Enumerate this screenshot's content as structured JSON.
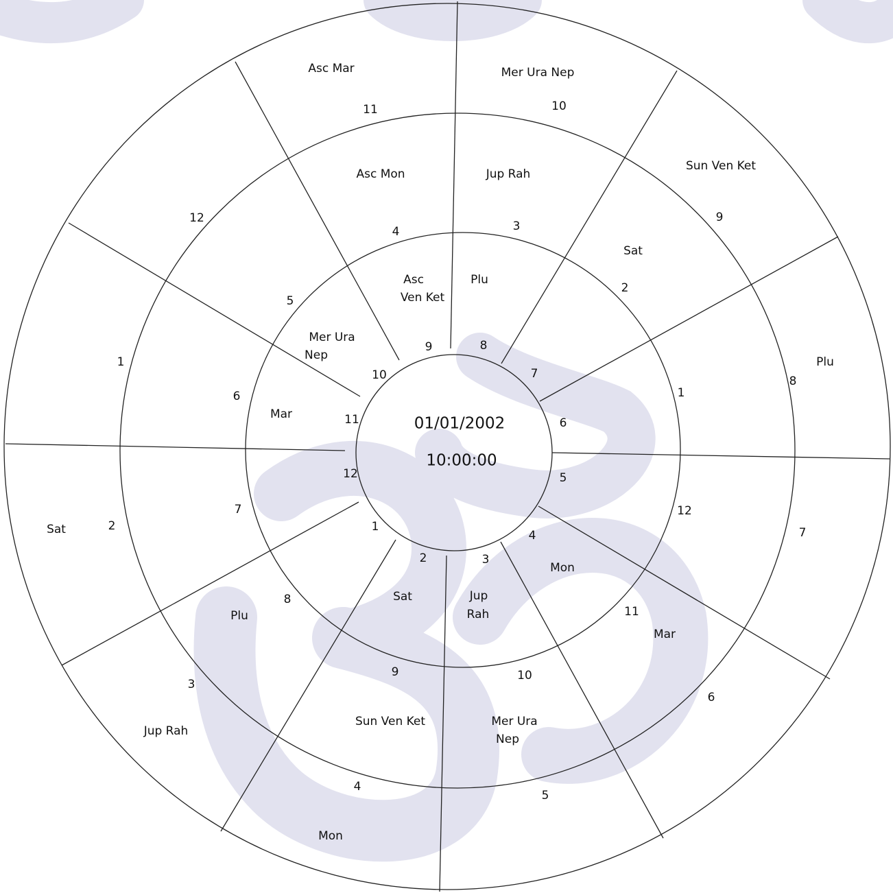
{
  "center": {
    "date": "01/01/2002",
    "time": "10:00:00"
  },
  "outer_ring": {
    "house_numbers": [
      11,
      10,
      9,
      8,
      7,
      6,
      5,
      4,
      3,
      2,
      1,
      12
    ],
    "planets": [
      [
        "Asc Mar"
      ],
      [
        "Mer Ura Nep"
      ],
      [
        "Sun Ven Ket"
      ],
      [
        "Plu"
      ],
      [
        "Mon"
      ],
      [
        "Jup Rah"
      ],
      [
        "Sat"
      ]
    ]
  },
  "middle_ring": {
    "house_numbers": [
      4,
      3,
      2,
      1,
      12,
      11,
      10,
      9,
      8,
      7,
      6,
      5
    ],
    "planets": [
      [
        "Asc Mon"
      ],
      [
        "Jup Rah"
      ],
      [
        "Sat"
      ],
      [
        "Mar"
      ],
      [
        "Mer Ura",
        "Nep"
      ],
      [
        "Sun Ven Ket"
      ],
      [
        "Plu"
      ]
    ]
  },
  "inner_ring": {
    "house_numbers": [
      9,
      8,
      7,
      6,
      5,
      4,
      3,
      2,
      1,
      12,
      11,
      10
    ],
    "planets": [
      [
        "Asc",
        "Ven Ket"
      ],
      [
        "Plu"
      ],
      [
        "Mon"
      ],
      [
        "Jup",
        "Rah"
      ],
      [
        "Sat"
      ],
      [
        "Mar"
      ],
      [
        "Mer Ura",
        "Nep"
      ]
    ]
  }
}
